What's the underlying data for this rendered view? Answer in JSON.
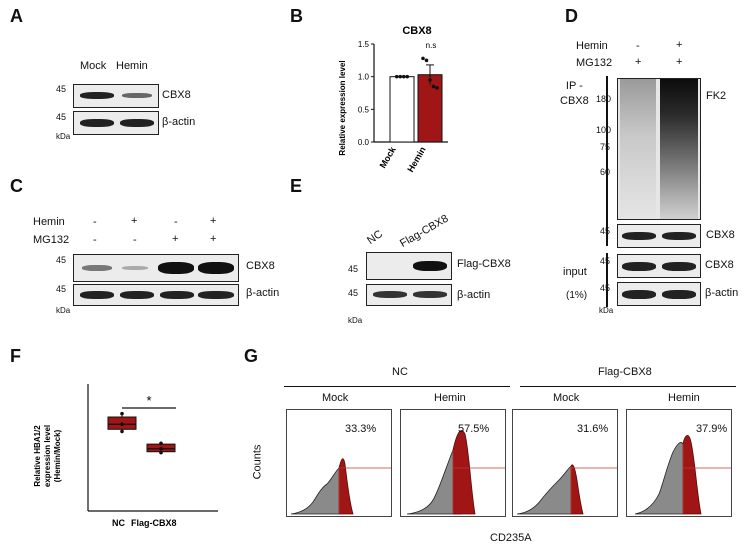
{
  "panels": {
    "A": {
      "label": "A",
      "lanes": [
        "Mock",
        "Hemin"
      ],
      "mw": [
        "45",
        "45"
      ],
      "kda": "kDa",
      "bands": [
        "CBX8",
        "β-actin"
      ]
    },
    "B": {
      "label": "B",
      "chart_data": {
        "type": "bar",
        "title": "CBX8",
        "ylabel": "Relative expression level",
        "categories": [
          "Mock",
          "Hemin"
        ],
        "values": [
          1.0,
          1.03
        ],
        "errors": [
          0.0,
          0.15
        ],
        "ylim": [
          0,
          1.5
        ],
        "yticks": [
          "0.0",
          "0.5",
          "1.0",
          "1.5"
        ],
        "annotation": "n.s",
        "colors": [
          "#ffffff",
          "#a01515"
        ],
        "points": [
          [
            1.0,
            1.0,
            1.0,
            1.0
          ],
          [
            1.28,
            1.25,
            0.95,
            0.85,
            0.83
          ]
        ]
      }
    },
    "C": {
      "label": "C",
      "row_labels": [
        "Hemin",
        "MG132"
      ],
      "hemin_signs": [
        "-",
        "+",
        "-",
        "+"
      ],
      "mg132_signs": [
        "-",
        "-",
        "+",
        "+"
      ],
      "mw": [
        "45",
        "45"
      ],
      "kda": "kDa",
      "bands": [
        "CBX8",
        "β-actin"
      ]
    },
    "D": {
      "label": "D",
      "row_labels": [
        "Hemin",
        "MG132"
      ],
      "hemin_signs": [
        "-",
        "+"
      ],
      "mg132_signs": [
        "+",
        "+"
      ],
      "ip_label": "IP -\nCBX8",
      "ip_mw": [
        "180",
        "100",
        "75",
        "60",
        "45"
      ],
      "fk2": "FK2",
      "ip_cbx8": "CBX8",
      "input_label": "input",
      "input_pct": "(1%)",
      "input_mw": [
        "45",
        "45"
      ],
      "input_bands": [
        "CBX8",
        "β-actin"
      ],
      "kda": "kDa"
    },
    "E": {
      "label": "E",
      "lanes": [
        "NC",
        "Flag-CBX8"
      ],
      "mw": [
        "45",
        "45"
      ],
      "kda": "kDa",
      "bands": [
        "Flag-CBX8",
        "β-actin"
      ]
    },
    "F": {
      "label": "F",
      "chart_data": {
        "type": "box",
        "ylabel_lines": [
          "Relative HBA1/2",
          "expression level",
          "(Hemin/Mock)"
        ],
        "categories": [
          "NC",
          "Flag-CBX8"
        ],
        "boxes": [
          {
            "min": 1.88,
            "q1": 1.93,
            "median": 2.05,
            "q3": 2.22,
            "max": 2.3
          },
          {
            "min": 1.38,
            "q1": 1.4,
            "median": 1.47,
            "q3": 1.58,
            "max": 1.6
          }
        ],
        "ylim": [
          0,
          3
        ],
        "annotation": "*",
        "color": "#a01515"
      }
    },
    "G": {
      "label": "G",
      "groups": [
        "NC",
        "Flag-CBX8"
      ],
      "conditions": [
        "Mock",
        "Hemin",
        "Mock",
        "Hemin"
      ],
      "percents": [
        "33.3%",
        "57.5%",
        "31.6%",
        "37.9%"
      ],
      "ylabel": "Counts",
      "xlabel": "CD235A"
    }
  },
  "colors": {
    "dark_red": "#a01515",
    "gray_hist": "#8a8a8a",
    "red_line": "#c0392b"
  }
}
